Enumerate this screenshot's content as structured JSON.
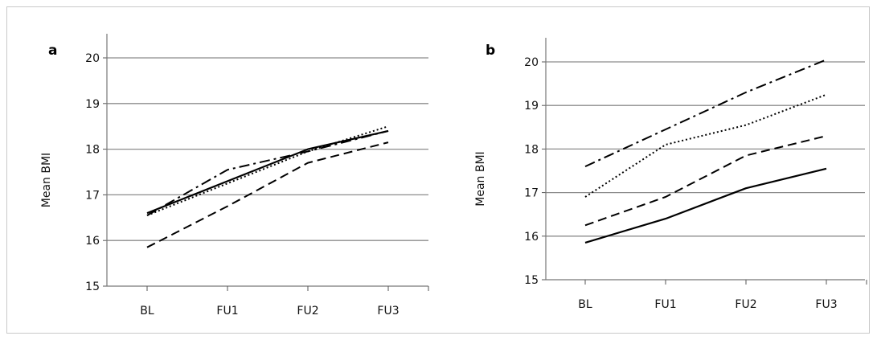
{
  "chart_data": [
    {
      "panel": "a",
      "type": "line",
      "ylabel": "Mean BMI",
      "xlabel": "",
      "categories": [
        "BL",
        "FU1",
        "FU2",
        "FU3"
      ],
      "ylim": [
        15,
        20
      ],
      "yticks": [
        15,
        16,
        17,
        18,
        19,
        20
      ],
      "grid": true,
      "series": [
        {
          "style": "solid",
          "values": [
            16.6,
            17.3,
            18.0,
            18.4
          ]
        },
        {
          "style": "dashed",
          "values": [
            15.85,
            16.75,
            17.7,
            18.15
          ]
        },
        {
          "style": "dotted",
          "values": [
            16.55,
            17.25,
            17.95,
            18.5
          ]
        },
        {
          "style": "dashdot",
          "values": [
            16.55,
            17.55,
            17.95,
            18.4
          ]
        }
      ]
    },
    {
      "panel": "b",
      "type": "line",
      "ylabel": "Mean BMI",
      "xlabel": "",
      "categories": [
        "BL",
        "FU1",
        "FU2",
        "FU3"
      ],
      "ylim": [
        15,
        20
      ],
      "yticks": [
        15,
        16,
        17,
        18,
        19,
        20
      ],
      "grid": true,
      "series": [
        {
          "style": "solid",
          "values": [
            15.85,
            16.4,
            17.1,
            17.55
          ]
        },
        {
          "style": "dashed",
          "values": [
            16.25,
            16.9,
            17.85,
            18.3
          ]
        },
        {
          "style": "dotted",
          "values": [
            16.9,
            18.1,
            18.55,
            19.25
          ]
        },
        {
          "style": "dashdot",
          "values": [
            17.6,
            18.45,
            19.3,
            20.05
          ]
        }
      ]
    }
  ]
}
